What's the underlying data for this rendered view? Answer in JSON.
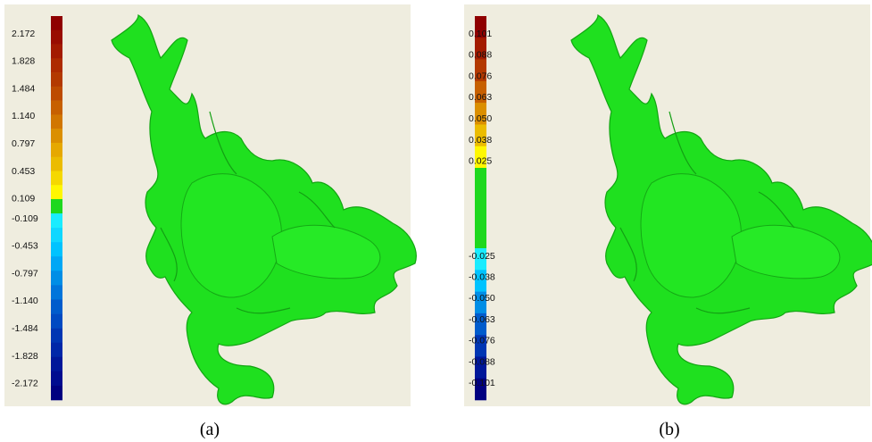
{
  "panels": [
    {
      "caption": "(a)",
      "scale_labels": [
        "2.172",
        "1.828",
        "1.484",
        "1.140",
        "0.797",
        "0.453",
        "0.109",
        "-0.109",
        "-0.453",
        "-0.797",
        "-1.140",
        "-1.484",
        "-1.828",
        "-2.172"
      ]
    },
    {
      "caption": "(b)",
      "scale_labels": [
        "0.101",
        "0.088",
        "0.076",
        "0.063",
        "0.050",
        "0.038",
        "0.025",
        "-0.025",
        "-0.038",
        "-0.050",
        "-0.063",
        "-0.076",
        "-0.088",
        "-0.101"
      ]
    }
  ]
}
